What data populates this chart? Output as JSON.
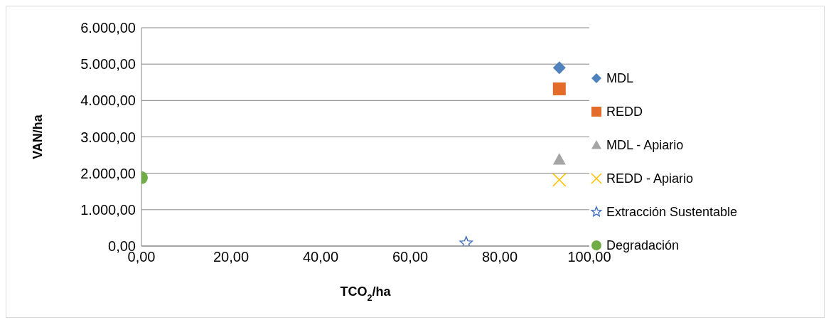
{
  "chart_data": {
    "type": "scatter",
    "xlabel": "TCO$_{2}$/ha",
    "ylabel": "VAN/ha",
    "xlim": [
      0,
      100
    ],
    "xticks": [
      {
        "value": 0,
        "label": "0,00"
      },
      {
        "value": 20,
        "label": "20,00"
      },
      {
        "value": 40,
        "label": "40,00"
      },
      {
        "value": 60,
        "label": "60,00"
      },
      {
        "value": 80,
        "label": "80,00"
      },
      {
        "value": 100,
        "label": "100,00"
      }
    ],
    "ylim": [
      0,
      6000
    ],
    "yticks": [
      {
        "value": 0,
        "label": "0,00"
      },
      {
        "value": 1000,
        "label": "1.000,00"
      },
      {
        "value": 2000,
        "label": "2.000,00"
      },
      {
        "value": 3000,
        "label": "3.000,00"
      },
      {
        "value": 4000,
        "label": "4.000,00"
      },
      {
        "value": 5000,
        "label": "5.000,00"
      },
      {
        "value": 6000,
        "label": "6.000,00"
      }
    ],
    "grid": "y",
    "legend": "right",
    "series": [
      {
        "name": "MDL",
        "color": "#4f81bd",
        "marker": "diamond",
        "x": [
          93.3
        ],
        "values": [
          4900
        ]
      },
      {
        "name": "REDD",
        "color": "#e36c2a",
        "marker": "square",
        "x": [
          93.3
        ],
        "values": [
          4320
        ]
      },
      {
        "name": "MDL - Apiario",
        "color": "#a5a5a5",
        "marker": "triangle",
        "x": [
          93.3
        ],
        "values": [
          2380
        ]
      },
      {
        "name": "REDD - Apiario",
        "color": "#ffc000",
        "marker": "cross",
        "x": [
          93.3
        ],
        "values": [
          1820
        ]
      },
      {
        "name": "Extracción Sustentable",
        "color": "#4472c4",
        "marker": "star",
        "x": [
          72.5
        ],
        "values": [
          80
        ]
      },
      {
        "name": "Degradación",
        "color": "#70ad47",
        "marker": "circle",
        "x": [
          0
        ],
        "values": [
          1880
        ]
      }
    ]
  }
}
